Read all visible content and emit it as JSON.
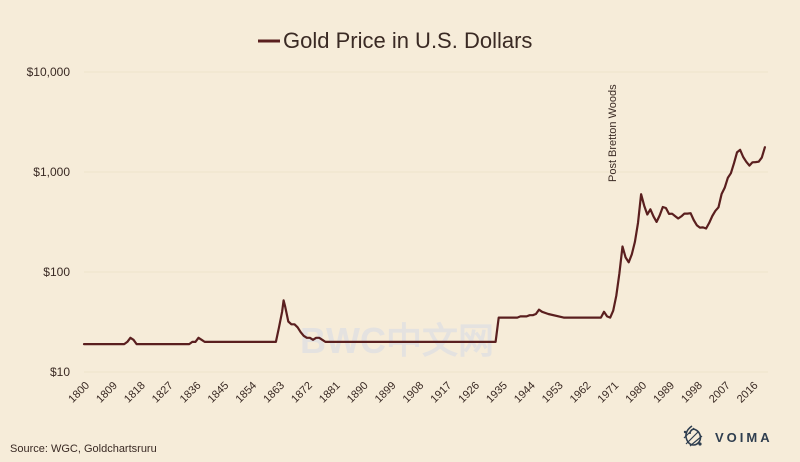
{
  "chart_data": {
    "type": "line",
    "title": "Gold Price in U.S. Dollars",
    "y_scale": "log",
    "ylim": [
      10,
      10000
    ],
    "xlim": [
      1800,
      2021
    ],
    "y_ticks": [
      10,
      100,
      1000,
      10000
    ],
    "y_tick_labels": [
      "$10",
      "$100",
      "$1,000",
      "$10,000"
    ],
    "x_ticks": [
      1800,
      1809,
      1818,
      1827,
      1836,
      1845,
      1854,
      1863,
      1872,
      1881,
      1890,
      1899,
      1908,
      1917,
      1926,
      1935,
      1944,
      1953,
      1962,
      1971,
      1980,
      1989,
      1998,
      2007,
      2016
    ],
    "grid": "horizontal",
    "legend": "top-center",
    "annotation": {
      "x": 1971,
      "text": "Post Bretton Woods"
    },
    "series": [
      {
        "name": "Gold Price in U.S. Dollars",
        "color": "#5a1f1f",
        "x": [
          1800,
          1813,
          1814,
          1815,
          1816,
          1817,
          1834,
          1835,
          1836,
          1837,
          1838,
          1839,
          1862,
          1863,
          1864,
          1864.5,
          1865,
          1866,
          1867,
          1868,
          1869,
          1870,
          1871,
          1872,
          1873,
          1874,
          1875,
          1876,
          1877,
          1878,
          1879,
          1880,
          1885,
          1900,
          1920,
          1933,
          1934,
          1937,
          1939,
          1940,
          1941,
          1942,
          1943,
          1944,
          1945,
          1946,
          1947,
          1948,
          1950,
          1955,
          1960,
          1965,
          1967,
          1968,
          1969,
          1970,
          1971,
          1972,
          1973,
          1974,
          1975,
          1976,
          1977,
          1978,
          1979,
          1980,
          1981,
          1982,
          1983,
          1984,
          1985,
          1986,
          1987,
          1988,
          1989,
          1990,
          1991,
          1992,
          1993,
          1994,
          1995,
          1996,
          1997,
          1998,
          1999,
          2000,
          2001,
          2002,
          2003,
          2004,
          2005,
          2006,
          2007,
          2008,
          2009,
          2010,
          2011,
          2012,
          2013,
          2014,
          2015,
          2016,
          2017,
          2018,
          2019,
          2020
        ],
        "values": [
          19,
          19,
          20,
          22,
          21,
          19,
          19,
          20,
          20,
          22,
          21,
          20,
          20,
          28,
          40,
          52,
          45,
          32,
          30,
          30,
          28,
          25,
          23,
          22,
          22,
          21,
          22,
          22,
          21,
          20,
          20,
          20,
          20,
          20,
          20,
          20,
          35,
          35,
          35,
          35,
          36,
          36,
          36,
          37,
          37,
          38,
          42,
          40,
          38,
          35,
          35,
          35,
          35,
          40,
          36,
          35,
          41,
          58,
          97,
          180,
          140,
          125,
          150,
          200,
          310,
          600,
          460,
          376,
          424,
          360,
          317,
          368,
          447,
          437,
          381,
          383,
          362,
          343,
          360,
          384,
          384,
          387,
          331,
          294,
          278,
          279,
          272,
          310,
          363,
          409,
          444,
          603,
          695,
          872,
          972,
          1224,
          1571,
          1669,
          1411,
          1266,
          1160,
          1250,
          1257,
          1268,
          1393,
          1770
        ]
      }
    ]
  },
  "source": "Source: WGC, Goldchartsruru",
  "brand": "VOIMA",
  "watermark": "BWC中文网"
}
